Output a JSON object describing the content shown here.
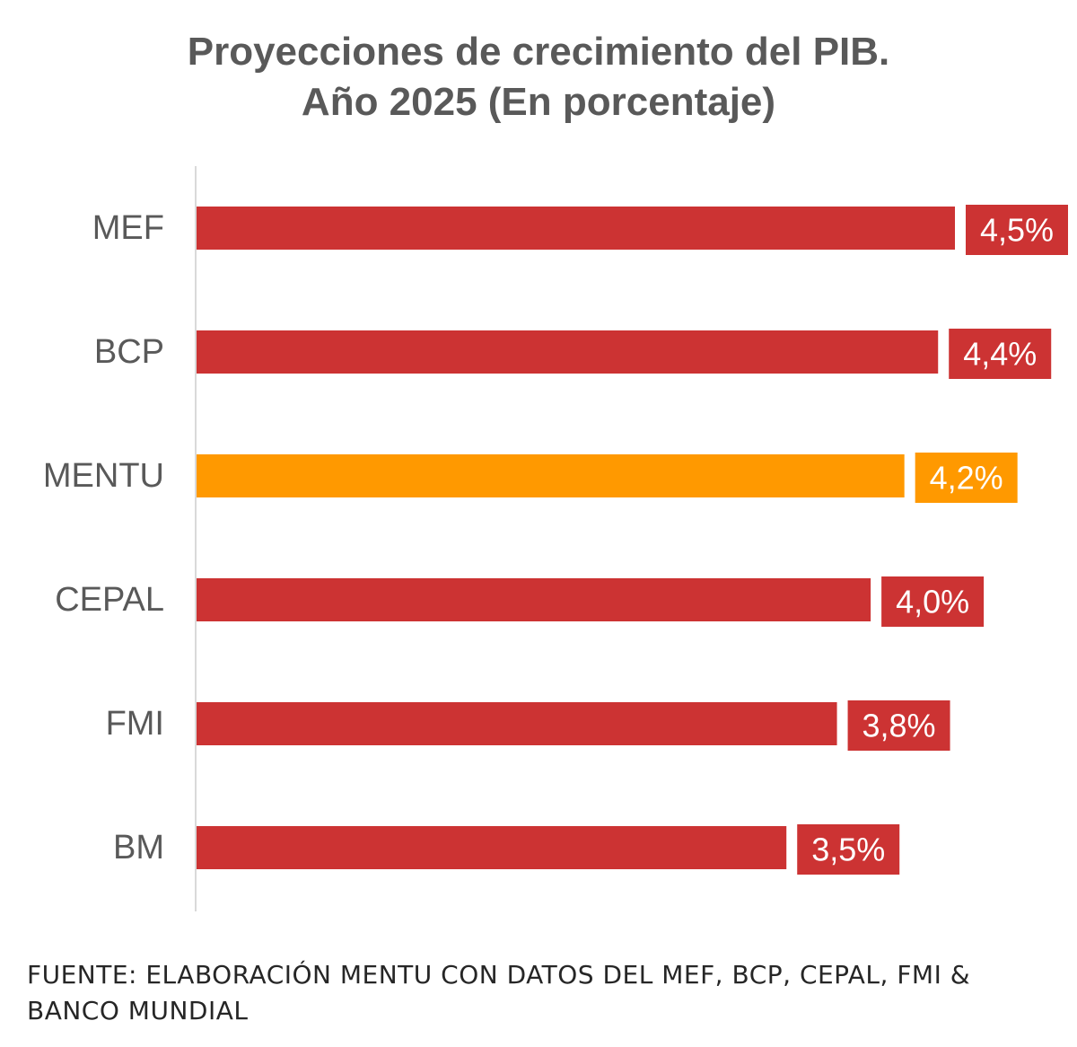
{
  "chart_data": {
    "type": "bar",
    "orientation": "horizontal",
    "title_line1": "Proyecciones de crecimiento del PIB.",
    "title_line2": "Año 2025 (En porcentaje)",
    "categories": [
      "MEF",
      "BCP",
      "MENTU",
      "CEPAL",
      "FMI",
      "BM"
    ],
    "values": [
      4.5,
      4.4,
      4.2,
      4.0,
      3.8,
      3.5
    ],
    "value_labels": [
      "4,5%",
      "4,4%",
      "4,2%",
      "4,0%",
      "3,8%",
      "3,5%"
    ],
    "xlim": [
      0,
      4.5
    ],
    "grid": false,
    "legend": "none",
    "colors": {
      "default": "#CC3333",
      "highlight": "#FF9900",
      "highlight_category": "MENTU",
      "axis": "#D9D9D9"
    }
  },
  "source_text": "FUENTE: ELABORACIÓN MENTU CON DATOS DEL MEF, BCP, CEPAL, FMI & BANCO MUNDIAL"
}
